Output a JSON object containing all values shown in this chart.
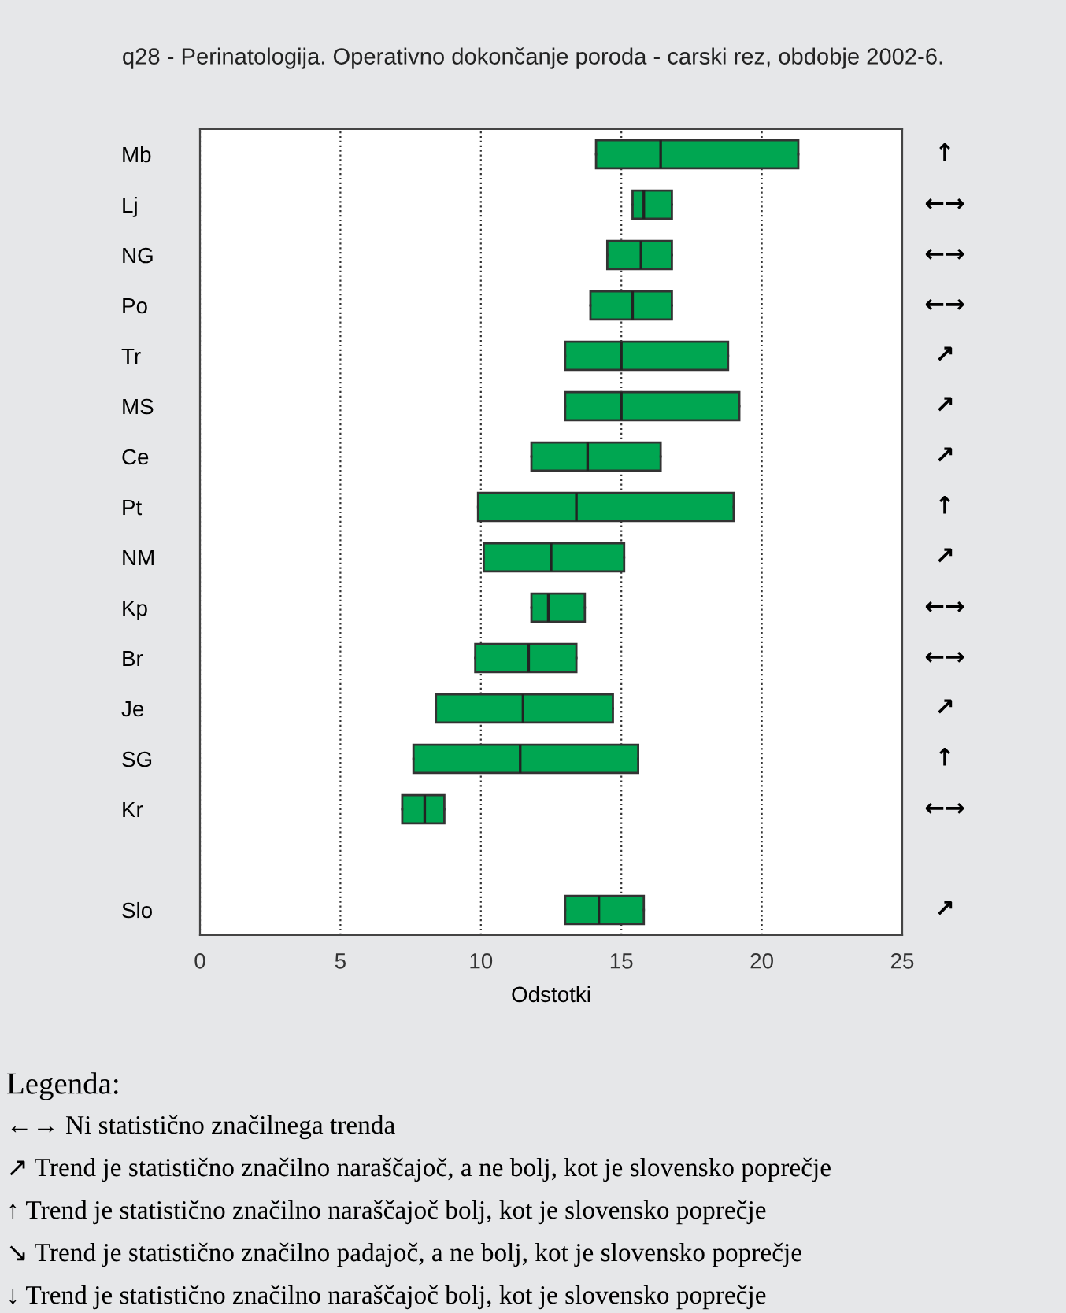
{
  "chart_data": {
    "type": "box",
    "orientation": "horizontal",
    "title": "q28 - Perinatologija. Operativno dokončanje poroda - carski rez, obdobje 2002-6.",
    "xlabel": "Odstotki",
    "categories": [
      "Mb",
      "Lj",
      "NG",
      "Po",
      "Tr",
      "MS",
      "Ce",
      "Pt",
      "NM",
      "Kp",
      "Br",
      "Je",
      "SG",
      "Kr",
      null,
      "Slo"
    ],
    "color": "#00a651",
    "boxes": [
      {
        "low": 14.1,
        "q1": 14.1,
        "median": 16.4,
        "q3": 21.3,
        "high": 21.3
      },
      {
        "low": 15.4,
        "q1": 15.4,
        "median": 15.8,
        "q3": 16.8,
        "high": 16.8
      },
      {
        "low": 14.5,
        "q1": 14.5,
        "median": 15.7,
        "q3": 16.8,
        "high": 16.8
      },
      {
        "low": 13.9,
        "q1": 13.9,
        "median": 15.4,
        "q3": 16.8,
        "high": 16.8
      },
      {
        "low": 13.0,
        "q1": 13.0,
        "median": 15.0,
        "q3": 18.8,
        "high": 18.8
      },
      {
        "low": 13.0,
        "q1": 13.0,
        "median": 15.0,
        "q3": 19.2,
        "high": 19.2
      },
      {
        "low": 11.8,
        "q1": 11.8,
        "median": 13.8,
        "q3": 16.4,
        "high": 16.4
      },
      {
        "low": 9.9,
        "q1": 9.9,
        "median": 13.4,
        "q3": 19.0,
        "high": 19.0
      },
      {
        "low": 10.1,
        "q1": 10.1,
        "median": 12.5,
        "q3": 15.1,
        "high": 15.1
      },
      {
        "low": 11.8,
        "q1": 11.8,
        "median": 12.4,
        "q3": 13.7,
        "high": 13.7
      },
      {
        "low": 9.8,
        "q1": 9.8,
        "median": 11.7,
        "q3": 13.4,
        "high": 13.4
      },
      {
        "low": 8.4,
        "q1": 8.4,
        "median": 11.5,
        "q3": 14.7,
        "high": 14.7
      },
      {
        "low": 7.6,
        "q1": 7.6,
        "median": 11.4,
        "q3": 15.6,
        "high": 15.6
      },
      {
        "low": 7.2,
        "q1": 7.2,
        "median": 8.0,
        "q3": 8.7,
        "high": 8.7
      },
      null,
      {
        "low": 13.0,
        "q1": 13.0,
        "median": 14.2,
        "q3": 15.8,
        "high": 15.8
      }
    ],
    "xlim": [
      0,
      25
    ],
    "xticks": [
      0,
      5,
      10,
      15,
      20,
      25
    ],
    "grid": "x",
    "line_style": "dotted",
    "y2_categories": [
      "↑",
      "←→",
      "←→",
      "←→",
      "↗",
      "↗",
      "↗",
      "↑",
      "↗",
      "←→",
      "←→",
      "↗",
      "↑",
      "←→",
      null,
      "↗"
    ],
    "annotations": [
      "Legenda:",
      "←→ Ni statistično značilnega trenda",
      "↗ Trend je statistično značilno naraščajoč, a ne bolj, kot je slovensko poprečje",
      "↑ Trend je statistično značilno naraščajoč bolj, kot je slovensko poprečje",
      "↘ Trend je statistično značilno padajoč, a ne bolj, kot je slovensko poprečje",
      "↓ Trend je statistično značilno naraščajoč bolj, kot je slovensko poprečje"
    ]
  }
}
